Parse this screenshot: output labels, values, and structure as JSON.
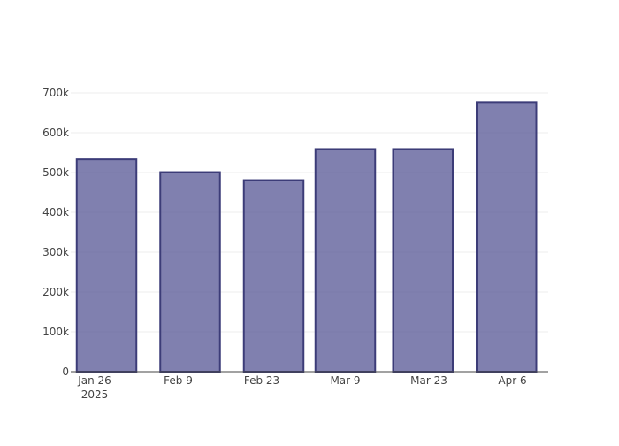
{
  "chart_data": {
    "type": "bar",
    "title": "",
    "xlabel": "",
    "ylabel": "",
    "x_tick_labels": [
      {
        "date": "2025-01-26",
        "line1": "Jan 26",
        "line2": "2025"
      },
      {
        "date": "2025-02-09",
        "line1": "Feb 9",
        "line2": ""
      },
      {
        "date": "2025-02-23",
        "line1": "Feb 23",
        "line2": ""
      },
      {
        "date": "2025-03-09",
        "line1": "Mar 9",
        "line2": ""
      },
      {
        "date": "2025-03-23",
        "line1": "Mar 23",
        "line2": ""
      },
      {
        "date": "2025-04-06",
        "line1": "Apr 6",
        "line2": ""
      }
    ],
    "x_range": [
      "2025-01-22",
      "2025-04-12"
    ],
    "bars": [
      {
        "start": "2025-01-23",
        "end": "2025-02-02",
        "value": 533000
      },
      {
        "start": "2025-02-06",
        "end": "2025-02-16",
        "value": 501000
      },
      {
        "start": "2025-02-20",
        "end": "2025-03-02",
        "value": 481000
      },
      {
        "start": "2025-03-04",
        "end": "2025-03-14",
        "value": 559000
      },
      {
        "start": "2025-03-17",
        "end": "2025-03-27",
        "value": 559000
      },
      {
        "start": "2025-03-31",
        "end": "2025-04-10",
        "value": 677000
      }
    ],
    "ylim": [
      0,
      700000
    ],
    "y_ticks": [
      {
        "value": 0,
        "label": "0"
      },
      {
        "value": 100000,
        "label": "100k"
      },
      {
        "value": 200000,
        "label": "200k"
      },
      {
        "value": 300000,
        "label": "300k"
      },
      {
        "value": 400000,
        "label": "400k"
      },
      {
        "value": 500000,
        "label": "500k"
      },
      {
        "value": 600000,
        "label": "600k"
      },
      {
        "value": 700000,
        "label": "700k"
      }
    ],
    "grid": true,
    "legend": "none",
    "colors": {
      "bar_fill": "#5c5c99",
      "bar_outline": "#3c3c78",
      "grid": "#eeeeee",
      "axis": "#444444"
    }
  }
}
